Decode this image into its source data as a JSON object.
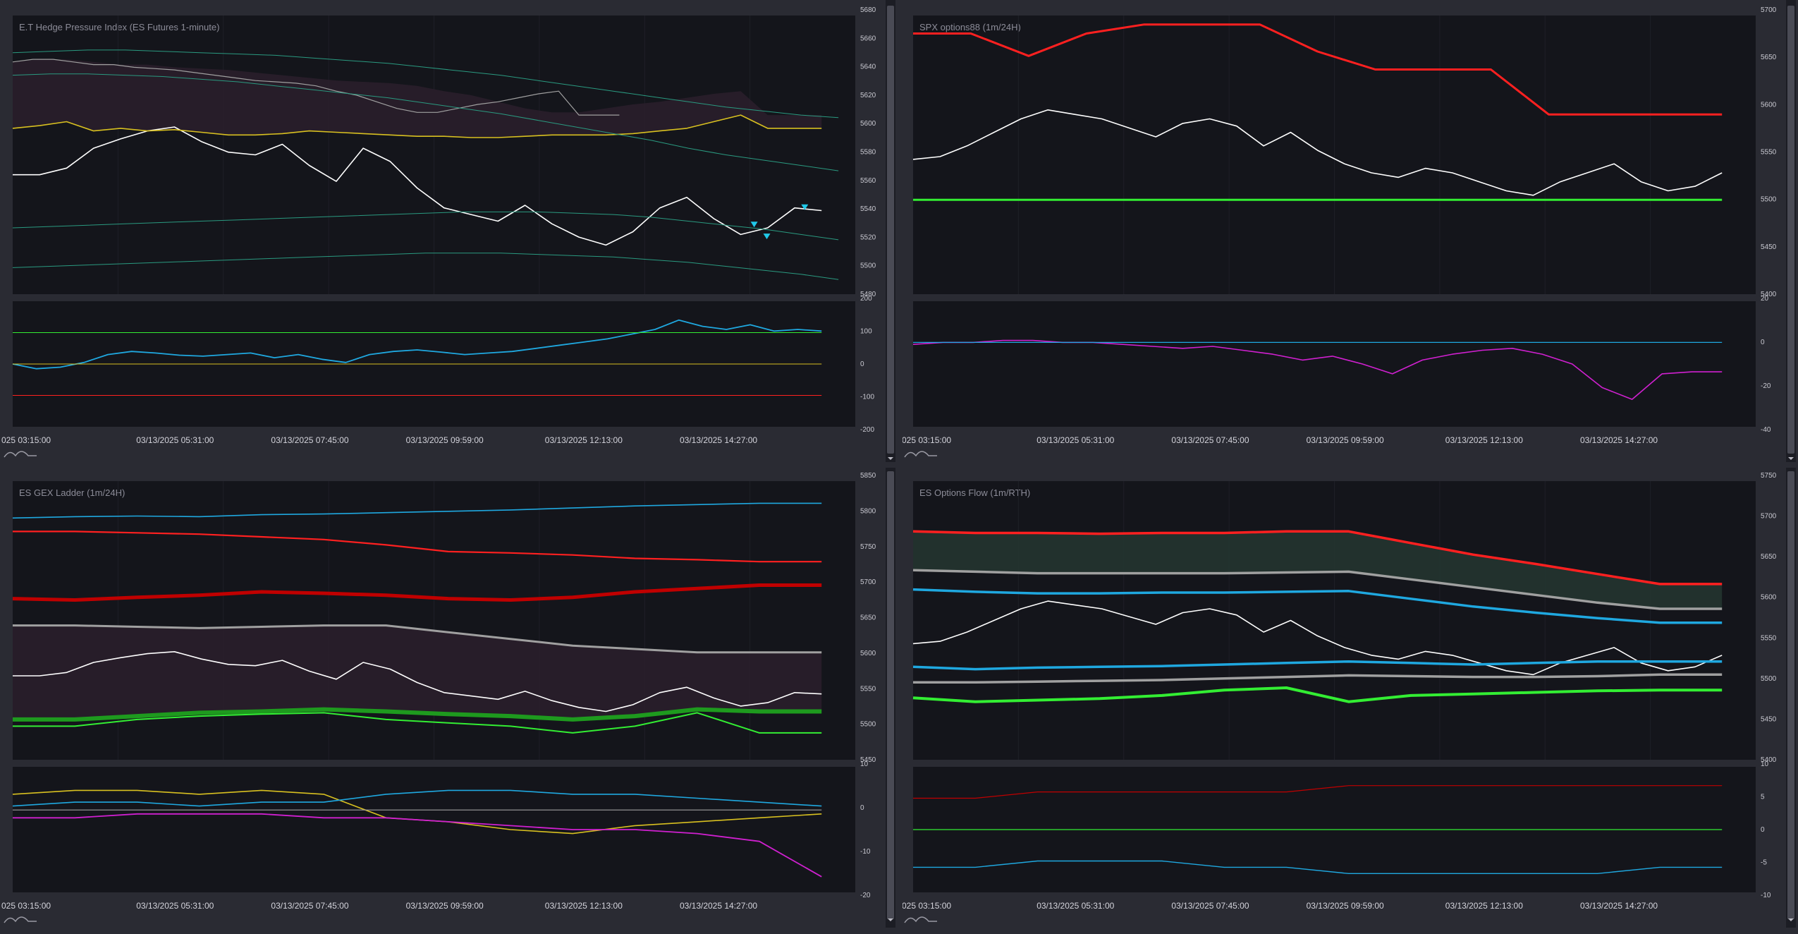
{
  "layout_note": "",
  "time_labels": [
    "025 03:15:00",
    "03/13/2025 05:31:00",
    "03/13/2025 07:45:00",
    "03/13/2025 09:59:00",
    "03/13/2025 12:13:00",
    "03/13/2025 14:27:00"
  ],
  "colors": {
    "price": "#ffffff",
    "cyan": "#1fa8e0",
    "green": "#33ee33",
    "dark_green": "#1e9a1e",
    "red": "#ff2020",
    "dark_red": "#c00000",
    "yellow": "#d8c020",
    "orange": "#d88a10",
    "gray": "#a0a0a0",
    "magenta": "#d020d0",
    "teal": "#2a9a80"
  },
  "chart_data": [
    {
      "id": "hedge",
      "type": "line",
      "title": "E.T Hedge Pressure Index (ES Futures 1-minute)",
      "y_ticks": [
        "5680",
        "5660",
        "5640",
        "5620",
        "5600",
        "5580",
        "5560",
        "5540",
        "5520",
        "5500",
        "5480"
      ],
      "ylim": [
        5475,
        5685
      ],
      "lower_y_ticks": [
        "200",
        "100",
        "0",
        "-100",
        "-200"
      ],
      "lower_ylim": [
        -200,
        200
      ],
      "series": [
        {
          "values": [
            5565,
            5565,
            5570,
            5585,
            5592,
            5598,
            5601,
            5590,
            5582,
            5580,
            5588,
            5572,
            5560,
            5585,
            5575,
            5555,
            5540,
            5535,
            5530,
            5542,
            5528,
            5518,
            5512,
            5522,
            5540,
            5548,
            5532,
            5520,
            5525,
            5540,
            5538
          ]
        },
        {
          "values": [
            5600,
            5602,
            5605,
            5598,
            5600,
            5598,
            5599,
            5597,
            5595,
            5595,
            5596,
            5598,
            5597,
            5596,
            5595,
            5594,
            5594,
            5593,
            5593,
            5594,
            5595,
            5595,
            5595,
            5596,
            5598,
            5600,
            5605,
            5610,
            5600,
            5600,
            5600
          ]
        },
        {
          "values": [
            5650,
            5652,
            5652,
            5650,
            5648,
            5648,
            5646,
            5645,
            5644,
            5642,
            5640,
            5638,
            5636,
            5635,
            5634,
            5632,
            5628,
            5625,
            5620,
            5615,
            5612,
            5612,
            5615,
            5618,
            5620,
            5623,
            5626,
            5628,
            5610,
            5610,
            5610
          ]
        },
        {
          "values": [
            5657,
            5658,
            5659,
            5659,
            5658,
            5657,
            5656,
            5655,
            5653,
            5651,
            5649,
            5646,
            5643,
            5640,
            5636,
            5632,
            5628,
            5624,
            5620,
            5616,
            5613,
            5610,
            5608
          ]
        },
        {
          "values": [
            5640,
            5641,
            5641,
            5640,
            5639,
            5637,
            5635,
            5632,
            5629,
            5626,
            5623,
            5619,
            5615,
            5611,
            5606,
            5601,
            5596,
            5591,
            5585,
            5580,
            5576,
            5572,
            5568
          ]
        },
        {
          "values": [
            5525,
            5526,
            5527,
            5528,
            5529,
            5530,
            5531,
            5532,
            5533,
            5534,
            5535,
            5536,
            5537,
            5537,
            5537,
            5536,
            5535,
            5533,
            5530,
            5527,
            5524,
            5520,
            5516
          ]
        },
        {
          "values": [
            5495,
            5496,
            5497,
            5498,
            5499,
            5500,
            5501,
            5502,
            5503,
            5504,
            5505,
            5506,
            5506,
            5506,
            5505,
            5504,
            5503,
            5501,
            5499,
            5496,
            5493,
            5490,
            5486
          ]
        }
      ],
      "lower_series": [
        {
          "values": [
            0,
            -15,
            -10,
            5,
            30,
            40,
            35,
            28,
            25,
            30,
            35,
            20,
            30,
            15,
            5,
            30,
            40,
            45,
            38,
            30,
            35,
            40,
            50,
            60,
            70,
            80,
            95,
            110,
            140,
            120,
            110,
            125,
            105,
            110,
            105
          ]
        },
        {
          "values": [
            100,
            100
          ]
        },
        {
          "values": [
            0,
            0
          ]
        },
        {
          "values": [
            -100,
            -100
          ]
        }
      ]
    },
    {
      "id": "spx",
      "type": "line",
      "title": "SPX options88 (1m/24H)",
      "y_ticks": [
        "5700",
        "5650",
        "5600",
        "5550",
        "5500",
        "5450",
        "5400"
      ],
      "ylim": [
        5395,
        5705
      ],
      "lower_y_ticks": [
        "20",
        "0",
        "-20",
        "-40"
      ],
      "lower_ylim": [
        -42,
        22
      ],
      "series": [
        {
          "values": [
            5545,
            5548,
            5560,
            5575,
            5590,
            5600,
            5595,
            5590,
            5580,
            5570,
            5585,
            5590,
            5582,
            5560,
            5575,
            5555,
            5540,
            5530,
            5525,
            5535,
            5530,
            5520,
            5510,
            5505,
            5520,
            5530,
            5540,
            5520,
            5510,
            5515,
            5530
          ]
        },
        {
          "values": [
            5685,
            5685,
            5660,
            5685,
            5695,
            5695,
            5695,
            5665,
            5645,
            5645,
            5645,
            5595,
            5595,
            5595,
            5595
          ]
        },
        {
          "values": [
            5500,
            5500,
            5500,
            5500,
            5500,
            5500,
            5500,
            5500,
            5500,
            5500,
            5500,
            5500
          ]
        }
      ],
      "lower_series": [
        {
          "values": [
            0,
            1,
            1,
            2,
            2,
            1,
            1,
            0,
            -1,
            -2,
            -1,
            -3,
            -5,
            -8,
            -6,
            -10,
            -15,
            -8,
            -5,
            -3,
            -2,
            -5,
            -10,
            -22,
            -28,
            -15,
            -14,
            -14
          ]
        },
        {
          "values": [
            1,
            1
          ]
        }
      ]
    },
    {
      "id": "gex",
      "type": "line",
      "title": "ES GEX Ladder (1m/24H)",
      "y_ticks": [
        "5850",
        "5800",
        "5750",
        "5700",
        "5650",
        "5600",
        "5550",
        "5500",
        "5450"
      ],
      "ylim": [
        5440,
        5855
      ],
      "lower_y_ticks": [
        "10",
        "0",
        "-10",
        "-20"
      ],
      "lower_ylim": [
        -21,
        11
      ],
      "series": [
        {
          "values": [
            5565,
            5565,
            5570,
            5585,
            5592,
            5598,
            5601,
            5590,
            5582,
            5580,
            5588,
            5572,
            5560,
            5585,
            5575,
            5555,
            5540,
            5535,
            5530,
            5542,
            5528,
            5518,
            5512,
            5522,
            5540,
            5548,
            5532,
            5520,
            5525,
            5540,
            5538
          ]
        },
        {
          "values": [
            5800,
            5802,
            5803,
            5802,
            5805,
            5806,
            5808,
            5810,
            5812,
            5815,
            5818,
            5820,
            5822,
            5822
          ]
        },
        {
          "values": [
            5780,
            5780,
            5778,
            5776,
            5772,
            5768,
            5760,
            5750,
            5748,
            5745,
            5740,
            5738,
            5735,
            5735
          ]
        },
        {
          "values": [
            5680,
            5678,
            5682,
            5685,
            5690,
            5688,
            5685,
            5680,
            5678,
            5682,
            5690,
            5695,
            5700,
            5700
          ]
        },
        {
          "values": [
            5640,
            5640,
            5638,
            5636,
            5638,
            5640,
            5640,
            5630,
            5620,
            5610,
            5605,
            5600,
            5600,
            5600
          ]
        },
        {
          "values": [
            5500,
            5500,
            5505,
            5510,
            5512,
            5515,
            5512,
            5508,
            5505,
            5500,
            5505,
            5515,
            5512,
            5512
          ]
        },
        {
          "values": [
            5490,
            5490,
            5500,
            5505,
            5508,
            5510,
            5500,
            5495,
            5490,
            5480,
            5490,
            5510,
            5480,
            5480
          ]
        }
      ],
      "lower_series": [
        {
          "values": [
            4,
            5,
            5,
            4,
            5,
            4,
            -2,
            -3,
            -5,
            -6,
            -4,
            -3,
            -2,
            -1
          ]
        },
        {
          "values": [
            -2,
            -2,
            -1,
            -1,
            -1,
            -2,
            -2,
            -3,
            -4,
            -5,
            -5,
            -6,
            -8,
            -17
          ]
        },
        {
          "values": [
            1,
            2,
            2,
            1,
            2,
            2,
            4,
            5,
            5,
            4,
            4,
            3,
            2,
            1
          ]
        },
        {
          "values": [
            0,
            0
          ]
        }
      ]
    },
    {
      "id": "flow",
      "type": "line",
      "title": "ES Options Flow (1m/RTH)",
      "y_ticks": [
        "5750",
        "5700",
        "5650",
        "5600",
        "5550",
        "5500",
        "5450",
        "5400"
      ],
      "ylim": [
        5395,
        5755
      ],
      "lower_y_ticks": [
        "10",
        "5",
        "0",
        "-5",
        "-10"
      ],
      "lower_ylim": [
        -10,
        10
      ],
      "series": [
        {
          "values": [
            5545,
            5548,
            5560,
            5575,
            5590,
            5600,
            5595,
            5590,
            5580,
            5570,
            5585,
            5590,
            5582,
            5560,
            5575,
            5555,
            5540,
            5530,
            5525,
            5535,
            5530,
            5520,
            5510,
            5505,
            5520,
            5530,
            5540,
            5520,
            5510,
            5515,
            5530
          ]
        },
        {
          "values": [
            5690,
            5688,
            5688,
            5687,
            5688,
            5688,
            5690,
            5690,
            5675,
            5660,
            5648,
            5635,
            5622,
            5622
          ]
        },
        {
          "values": [
            5640,
            5638,
            5636,
            5636,
            5636,
            5636,
            5637,
            5638,
            5628,
            5618,
            5608,
            5598,
            5590,
            5590
          ]
        },
        {
          "values": [
            5615,
            5612,
            5610,
            5610,
            5611,
            5611,
            5612,
            5613,
            5603,
            5593,
            5585,
            5578,
            5572,
            5572
          ]
        },
        {
          "values": [
            5515,
            5512,
            5514,
            5515,
            5516,
            5518,
            5520,
            5522,
            5520,
            5518,
            5520,
            5522,
            5522,
            5522
          ]
        },
        {
          "values": [
            5495,
            5495,
            5496,
            5497,
            5498,
            5500,
            5502,
            5504,
            5503,
            5502,
            5502,
            5503,
            5505,
            5505
          ]
        },
        {
          "values": [
            5475,
            5470,
            5472,
            5474,
            5478,
            5485,
            5488,
            5470,
            5478,
            5480,
            5482,
            5484,
            5485,
            5485
          ]
        }
      ],
      "lower_series": [
        {
          "values": [
            5,
            5,
            6,
            6,
            6,
            6,
            6,
            7,
            7,
            7,
            7,
            7,
            7,
            7
          ]
        },
        {
          "values": [
            0,
            0
          ]
        },
        {
          "values": [
            -6,
            -6,
            -5,
            -5,
            -5,
            -6,
            -6,
            -7,
            -7,
            -7,
            -7,
            -7,
            -6,
            -6
          ]
        }
      ]
    }
  ]
}
